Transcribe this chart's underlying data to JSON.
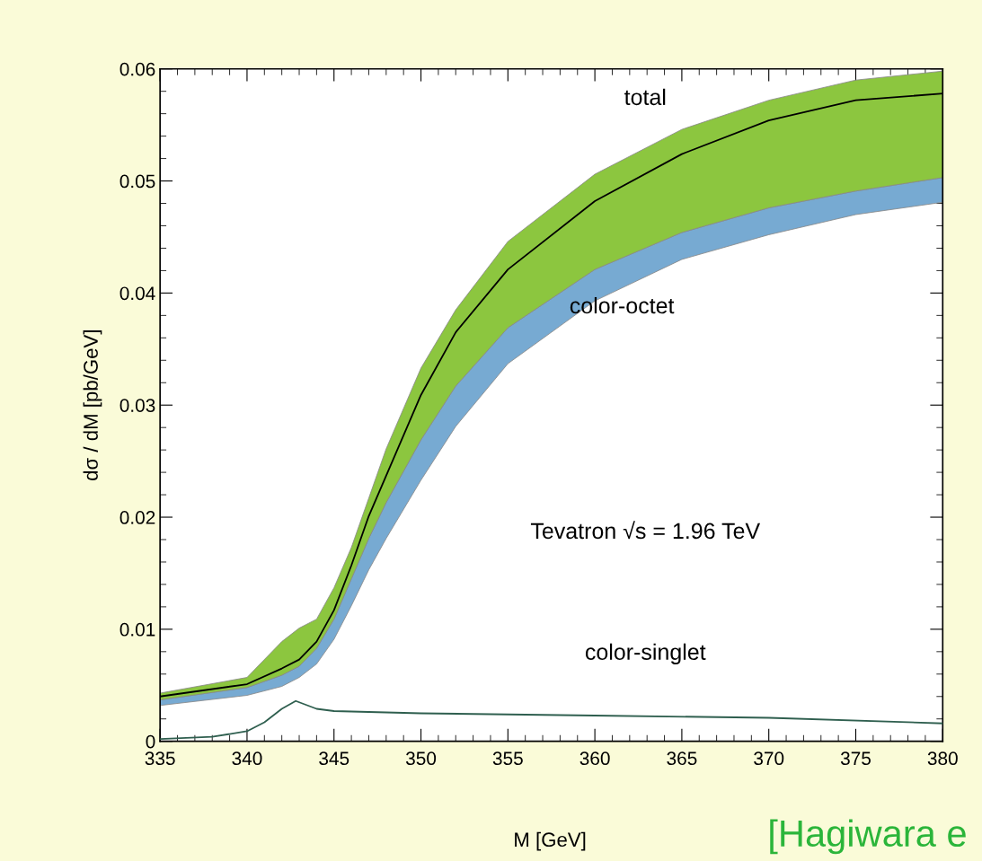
{
  "chart_data": {
    "type": "line",
    "xlabel": "M [GeV]",
    "ylabel": "dσ / dM [pb/GeV]",
    "xlim": [
      335,
      380
    ],
    "xticks": [
      335,
      340,
      345,
      350,
      355,
      360,
      365,
      370,
      375,
      380
    ],
    "ylim": [
      0,
      0.06
    ],
    "yticks": [
      0,
      0.01,
      0.02,
      0.03,
      0.04,
      0.05,
      0.06
    ],
    "grid": false,
    "legend": false,
    "series": [
      {
        "color": "#77aad2",
        "x": [
          335,
          340,
          342,
          343,
          344,
          345,
          346,
          347,
          348,
          350,
          352,
          355,
          360,
          365,
          370,
          375,
          380
        ],
        "values": [
          null,
          null,
          null,
          null,
          null,
          null,
          null,
          null,
          null,
          null,
          null,
          null,
          null,
          null,
          null,
          null,
          null
        ],
        "upper": [
          0.0037,
          0.0048,
          0.0059,
          0.0067,
          0.0083,
          0.0109,
          0.0145,
          0.0181,
          0.0213,
          0.0269,
          0.0317,
          0.0369,
          0.0421,
          0.0454,
          0.0476,
          0.0491,
          0.0503
        ],
        "lower": [
          0.0032,
          0.0041,
          0.0049,
          0.0057,
          0.0069,
          0.0091,
          0.0121,
          0.0153,
          0.0181,
          0.0233,
          0.0281,
          0.0337,
          0.0393,
          0.043,
          0.0452,
          0.047,
          0.0481
        ]
      },
      {
        "color": "#8cc63f",
        "x": [
          335,
          340,
          342,
          343,
          344,
          345,
          346,
          347,
          348,
          350,
          352,
          355,
          360,
          365,
          370,
          375,
          380
        ],
        "values": [
          null,
          null,
          null,
          null,
          null,
          null,
          null,
          null,
          null,
          null,
          null,
          null,
          null,
          null,
          null,
          null,
          null
        ],
        "upper": [
          0.0043,
          0.0057,
          0.0089,
          0.0101,
          0.0109,
          0.0137,
          0.0173,
          0.0217,
          0.0261,
          0.0333,
          0.0385,
          0.0446,
          0.0506,
          0.0546,
          0.0572,
          0.059,
          0.0598
        ],
        "lower": [
          0.0037,
          0.0048,
          0.0059,
          0.0067,
          0.0083,
          0.0109,
          0.0145,
          0.0181,
          0.0213,
          0.0269,
          0.0317,
          0.0369,
          0.0421,
          0.0454,
          0.0476,
          0.0491,
          0.0503
        ]
      },
      {
        "color": "#000000",
        "x": [
          335,
          340,
          342,
          343,
          344,
          345,
          346,
          347,
          348,
          350,
          352,
          355,
          360,
          365,
          370,
          375,
          380
        ],
        "values": [
          0.004,
          0.0051,
          0.0065,
          0.0073,
          0.0089,
          0.0117,
          0.0157,
          0.0201,
          0.0237,
          0.0309,
          0.0365,
          0.0421,
          0.0482,
          0.0524,
          0.0554,
          0.0572,
          0.0578
        ]
      },
      {
        "color": "#2f5f4f",
        "x": [
          335,
          338,
          340,
          341,
          342,
          342.8,
          344,
          345,
          350,
          360,
          370,
          380
        ],
        "values": [
          0.0002,
          0.0004,
          0.0009,
          0.0017,
          0.0029,
          0.0036,
          0.0029,
          0.0027,
          0.0025,
          0.0023,
          0.0021,
          0.0016
        ]
      }
    ],
    "annotations": [
      "total",
      "color-octet",
      "color-singlet",
      "Tevatron √s = 1.96 TeV",
      "[Hagiwara e"
    ]
  }
}
